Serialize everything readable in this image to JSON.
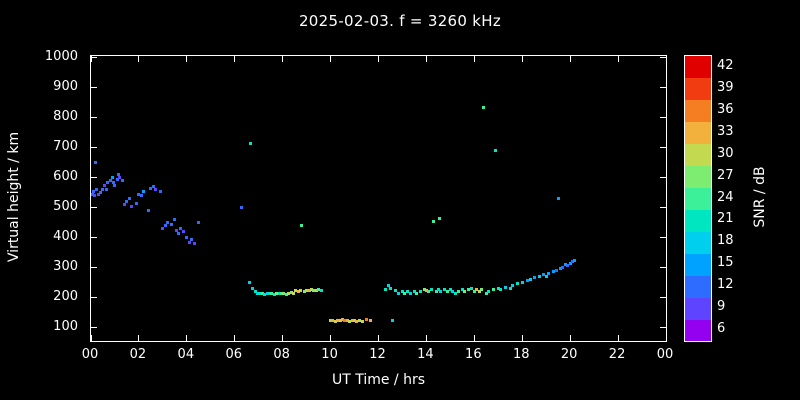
{
  "title": "2025-02-03. f = 3260 kHz",
  "x_axis": {
    "label": "UT Time / hrs",
    "min": 0,
    "max": 24,
    "tick_values": [
      0,
      2,
      4,
      6,
      8,
      10,
      12,
      14,
      16,
      18,
      20,
      22,
      24
    ],
    "tick_labels": [
      "00",
      "02",
      "04",
      "06",
      "08",
      "10",
      "12",
      "14",
      "16",
      "18",
      "20",
      "22",
      "00"
    ]
  },
  "y_axis": {
    "label": "Virtual height / km",
    "min": 55,
    "max": 1005,
    "tick_values": [
      100,
      200,
      300,
      400,
      500,
      600,
      700,
      800,
      900,
      1000
    ]
  },
  "colorbar": {
    "label": "SNR / dB",
    "min": 4.5,
    "max": 43.5,
    "tick_values": [
      6,
      9,
      12,
      15,
      18,
      21,
      24,
      27,
      30,
      33,
      36,
      39,
      42
    ],
    "palette": [
      {
        "v": 6,
        "c": "#9400f0"
      },
      {
        "v": 9,
        "c": "#5f44ff"
      },
      {
        "v": 12,
        "c": "#2e6bff"
      },
      {
        "v": 15,
        "c": "#00a2ff"
      },
      {
        "v": 18,
        "c": "#00cfee"
      },
      {
        "v": 21,
        "c": "#00e6c0"
      },
      {
        "v": 24,
        "c": "#3cf09a"
      },
      {
        "v": 27,
        "c": "#7ded72"
      },
      {
        "v": 30,
        "c": "#c3d94f"
      },
      {
        "v": 33,
        "c": "#f2b13c"
      },
      {
        "v": 36,
        "c": "#f57d22"
      },
      {
        "v": 39,
        "c": "#f03c10"
      },
      {
        "v": 42,
        "c": "#e00000"
      }
    ]
  },
  "chart_data": {
    "type": "scatter",
    "title": "2025-02-03. f = 3260 kHz",
    "xlabel": "UT Time / hrs",
    "ylabel": "Virtual height / km",
    "zlabel": "SNR / dB",
    "xlim": [
      0,
      24
    ],
    "ylim": [
      55,
      1005
    ],
    "point_format": [
      "ut_hours",
      "virtual_height_km",
      "snr_db"
    ],
    "points": [
      [
        0.05,
        545,
        12
      ],
      [
        0.1,
        555,
        12
      ],
      [
        0.15,
        540,
        9
      ],
      [
        0.2,
        650,
        12
      ],
      [
        0.25,
        560,
        12
      ],
      [
        0.3,
        545,
        9
      ],
      [
        0.4,
        550,
        12
      ],
      [
        0.5,
        560,
        12
      ],
      [
        0.55,
        575,
        9
      ],
      [
        0.65,
        560,
        12
      ],
      [
        0.7,
        585,
        12
      ],
      [
        0.8,
        590,
        12
      ],
      [
        0.9,
        600,
        15
      ],
      [
        0.95,
        585,
        12
      ],
      [
        1.0,
        575,
        12
      ],
      [
        1.1,
        595,
        12
      ],
      [
        1.15,
        610,
        12
      ],
      [
        1.2,
        600,
        9
      ],
      [
        1.3,
        590,
        12
      ],
      [
        1.4,
        510,
        9
      ],
      [
        1.5,
        520,
        12
      ],
      [
        1.6,
        530,
        12
      ],
      [
        1.7,
        505,
        9
      ],
      [
        1.9,
        515,
        12
      ],
      [
        2.0,
        545,
        12
      ],
      [
        2.1,
        540,
        12
      ],
      [
        2.2,
        555,
        15
      ],
      [
        2.4,
        490,
        12
      ],
      [
        2.5,
        565,
        12
      ],
      [
        2.6,
        570,
        12
      ],
      [
        2.7,
        560,
        9
      ],
      [
        2.9,
        555,
        12
      ],
      [
        3.0,
        430,
        9
      ],
      [
        3.1,
        440,
        12
      ],
      [
        3.2,
        450,
        12
      ],
      [
        3.35,
        445,
        12
      ],
      [
        3.5,
        460,
        12
      ],
      [
        3.55,
        425,
        9
      ],
      [
        3.65,
        415,
        12
      ],
      [
        3.75,
        430,
        12
      ],
      [
        3.85,
        420,
        9
      ],
      [
        4.0,
        400,
        12
      ],
      [
        4.1,
        385,
        9
      ],
      [
        4.2,
        395,
        12
      ],
      [
        4.3,
        380,
        9
      ],
      [
        4.5,
        450,
        12
      ],
      [
        6.3,
        500,
        12
      ],
      [
        6.65,
        715,
        21
      ],
      [
        6.6,
        250,
        18
      ],
      [
        6.75,
        230,
        18
      ],
      [
        6.85,
        220,
        21
      ],
      [
        6.95,
        215,
        18
      ],
      [
        7.05,
        212,
        21
      ],
      [
        7.15,
        215,
        24
      ],
      [
        7.25,
        210,
        21
      ],
      [
        7.35,
        212,
        18
      ],
      [
        7.45,
        215,
        21
      ],
      [
        7.55,
        212,
        24
      ],
      [
        7.65,
        210,
        21
      ],
      [
        7.75,
        213,
        27
      ],
      [
        7.85,
        212,
        21
      ],
      [
        7.95,
        215,
        24
      ],
      [
        8.05,
        212,
        27
      ],
      [
        8.15,
        210,
        24
      ],
      [
        8.25,
        215,
        30
      ],
      [
        8.35,
        218,
        27
      ],
      [
        8.45,
        215,
        30
      ],
      [
        8.55,
        222,
        30
      ],
      [
        8.65,
        220,
        33
      ],
      [
        8.75,
        222,
        30
      ],
      [
        8.8,
        440,
        24
      ],
      [
        8.9,
        220,
        27
      ],
      [
        9.0,
        225,
        30
      ],
      [
        9.1,
        222,
        33
      ],
      [
        9.2,
        228,
        30
      ],
      [
        9.3,
        225,
        27
      ],
      [
        9.4,
        222,
        30
      ],
      [
        9.5,
        228,
        24
      ],
      [
        9.6,
        225,
        21
      ],
      [
        10.0,
        125,
        30
      ],
      [
        10.1,
        124,
        33
      ],
      [
        10.2,
        120,
        30
      ],
      [
        10.3,
        124,
        33
      ],
      [
        10.4,
        125,
        30
      ],
      [
        10.5,
        128,
        33
      ],
      [
        10.6,
        124,
        36
      ],
      [
        10.7,
        125,
        33
      ],
      [
        10.8,
        121,
        30
      ],
      [
        10.9,
        124,
        33
      ],
      [
        11.0,
        125,
        30
      ],
      [
        11.1,
        121,
        33
      ],
      [
        11.2,
        124,
        30
      ],
      [
        11.35,
        120,
        30
      ],
      [
        11.5,
        128,
        36
      ],
      [
        11.65,
        125,
        33
      ],
      [
        12.3,
        228,
        21
      ],
      [
        12.4,
        240,
        18
      ],
      [
        12.5,
        230,
        21
      ],
      [
        12.6,
        125,
        18
      ],
      [
        12.7,
        222,
        21
      ],
      [
        12.85,
        215,
        18
      ],
      [
        13.0,
        220,
        21
      ],
      [
        13.1,
        214,
        24
      ],
      [
        13.2,
        220,
        21
      ],
      [
        13.35,
        214,
        18
      ],
      [
        13.5,
        220,
        21
      ],
      [
        13.6,
        215,
        24
      ],
      [
        13.75,
        220,
        21
      ],
      [
        13.9,
        226,
        27
      ],
      [
        14.0,
        222,
        33
      ],
      [
        14.1,
        220,
        24
      ],
      [
        14.2,
        226,
        21
      ],
      [
        14.3,
        455,
        24
      ],
      [
        14.4,
        220,
        24
      ],
      [
        14.5,
        226,
        21
      ],
      [
        14.55,
        465,
        24
      ],
      [
        14.6,
        220,
        18
      ],
      [
        14.75,
        226,
        21
      ],
      [
        14.9,
        220,
        24
      ],
      [
        15.0,
        226,
        21
      ],
      [
        15.1,
        220,
        18
      ],
      [
        15.2,
        214,
        21
      ],
      [
        15.35,
        220,
        24
      ],
      [
        15.5,
        226,
        21
      ],
      [
        15.6,
        220,
        27
      ],
      [
        15.75,
        226,
        24
      ],
      [
        15.9,
        230,
        21
      ],
      [
        16.0,
        220,
        24
      ],
      [
        16.1,
        226,
        33
      ],
      [
        16.2,
        220,
        30
      ],
      [
        16.3,
        226,
        27
      ],
      [
        16.4,
        835,
        24
      ],
      [
        16.5,
        214,
        24
      ],
      [
        16.6,
        220,
        21
      ],
      [
        16.8,
        226,
        24
      ],
      [
        16.9,
        690,
        21
      ],
      [
        17.0,
        230,
        21
      ],
      [
        17.1,
        226,
        21
      ],
      [
        17.3,
        234,
        18
      ],
      [
        17.5,
        230,
        21
      ],
      [
        17.6,
        240,
        18
      ],
      [
        17.8,
        246,
        21
      ],
      [
        18.0,
        250,
        18
      ],
      [
        18.2,
        256,
        15
      ],
      [
        18.35,
        260,
        18
      ],
      [
        18.5,
        266,
        15
      ],
      [
        18.7,
        270,
        18
      ],
      [
        18.9,
        276,
        15
      ],
      [
        19.0,
        270,
        18
      ],
      [
        19.1,
        280,
        15
      ],
      [
        19.3,
        286,
        15
      ],
      [
        19.45,
        290,
        12
      ],
      [
        19.5,
        530,
        15
      ],
      [
        19.6,
        296,
        15
      ],
      [
        19.7,
        300,
        12
      ],
      [
        19.8,
        310,
        15
      ],
      [
        19.9,
        306,
        12
      ],
      [
        20.0,
        315,
        15
      ],
      [
        20.1,
        320,
        12
      ],
      [
        20.2,
        325,
        15
      ]
    ]
  }
}
